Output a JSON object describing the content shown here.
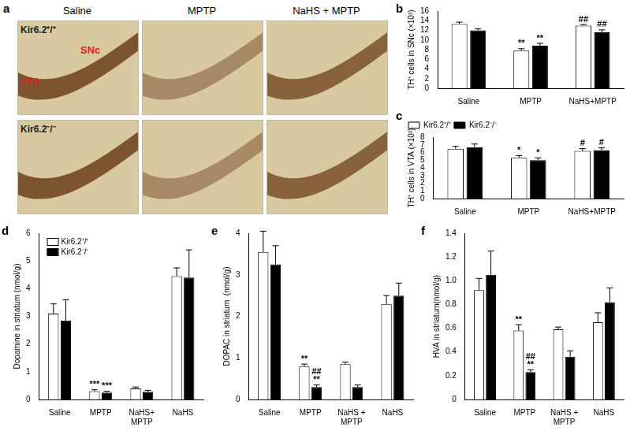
{
  "panel_a": {
    "label": "a",
    "columns": [
      "Saline",
      "MPTP",
      "NaHS + MPTP"
    ],
    "rows": [
      "Kir6.2⁺/⁺",
      "Kir6.2⁻/⁻"
    ],
    "regions": [
      "VTA",
      "SNc"
    ]
  },
  "chart_data": [
    {
      "panel": "b",
      "type": "bar",
      "y_label": "TH⁺ cells in SNc (×10³)",
      "categories": [
        "Saline",
        "MPTP",
        "NaHS+MPTP"
      ],
      "series": [
        {
          "color": "#ffffff",
          "values": [
            13.3,
            7.8,
            13.0
          ],
          "errors": [
            0.4,
            0.4,
            0.2
          ],
          "marks": [
            null,
            "**",
            "##"
          ]
        },
        {
          "color": "#000000",
          "values": [
            12.0,
            8.8,
            11.6
          ],
          "errors": [
            0.3,
            0.5,
            0.5
          ],
          "marks": [
            null,
            "**",
            "##"
          ]
        }
      ],
      "ylim": [
        0,
        16
      ],
      "yticks": [
        0,
        2,
        4,
        6,
        8,
        10,
        12,
        14,
        16
      ],
      "grid": false
    },
    {
      "panel": "c",
      "type": "bar",
      "y_label": "TH⁺ cells in VTA (×10³)",
      "categories": [
        "Saline",
        "MPTP",
        "NaHS+MPTP"
      ],
      "series": [
        {
          "name": "Kir6.2⁺/⁺",
          "color": "#ffffff",
          "values": [
            6.5,
            5.3,
            6.2
          ],
          "errors": [
            0.3,
            0.3,
            0.3
          ],
          "marks": [
            null,
            "*",
            "#"
          ]
        },
        {
          "name": "Kir6.2⁻/⁻",
          "color": "#000000",
          "values": [
            6.7,
            5.0,
            6.3
          ],
          "errors": [
            0.4,
            0.3,
            0.3
          ],
          "marks": [
            null,
            "*",
            "#"
          ]
        }
      ],
      "ylim": [
        0,
        8
      ],
      "yticks": [
        0,
        1,
        2,
        3,
        4,
        5,
        6,
        7,
        8
      ],
      "grid": false,
      "legend": "top"
    },
    {
      "panel": "d",
      "type": "bar",
      "y_label": "Dopamine in striatum (nmol/g)",
      "categories": [
        "Saline",
        "MPTP",
        [
          "NaHS+",
          "MPTP"
        ],
        "NaHS"
      ],
      "series": [
        {
          "name": "Kir6.2⁺/⁺",
          "color": "#ffffff",
          "values": [
            3.1,
            0.3,
            0.4,
            4.45
          ],
          "errors": [
            0.35,
            0.05,
            0.05,
            0.3
          ],
          "marks": [
            null,
            "***",
            null,
            null
          ]
        },
        {
          "name": "Kir6.2⁻/⁻",
          "color": "#000000",
          "values": [
            2.85,
            0.25,
            0.28,
            4.4
          ],
          "errors": [
            0.75,
            0.05,
            0.05,
            1.0
          ],
          "marks": [
            null,
            "***",
            null,
            null
          ]
        }
      ],
      "ylim": [
        0,
        6
      ],
      "yticks": [
        0,
        1,
        2,
        3,
        4,
        5,
        6
      ],
      "grid": false,
      "legend": "upper left"
    },
    {
      "panel": "e",
      "type": "bar",
      "y_label": "DOPAC in striatum  (nmol/g)",
      "categories": [
        "Saline",
        "MPTP",
        [
          "NaHS +",
          "MPTP"
        ],
        "NaHS"
      ],
      "series": [
        {
          "color": "#ffffff",
          "values": [
            3.55,
            0.8,
            0.85,
            2.3
          ],
          "errors": [
            0.5,
            0.05,
            0.05,
            0.2
          ],
          "marks": [
            null,
            "**",
            null,
            null
          ]
        },
        {
          "color": "#000000",
          "values": [
            3.25,
            0.3,
            0.3,
            2.5
          ],
          "errors": [
            0.45,
            0.05,
            0.05,
            0.3
          ],
          "marks": [
            null,
            [
              "##",
              "**"
            ],
            null,
            null
          ]
        }
      ],
      "ylim": [
        0,
        4
      ],
      "yticks": [
        0,
        1,
        2,
        3,
        4
      ],
      "grid": false
    },
    {
      "panel": "f",
      "type": "bar",
      "y_label": "HVA in striatum(nmol/g)",
      "categories": [
        "Saline",
        "MPTP",
        [
          "NaHS +",
          "MPTP"
        ],
        "NaHS"
      ],
      "series": [
        {
          "color": "#ffffff",
          "values": [
            0.92,
            0.58,
            0.59,
            0.65
          ],
          "errors": [
            0.1,
            0.05,
            0.02,
            0.08
          ],
          "marks": [
            null,
            "**",
            null,
            null
          ]
        },
        {
          "color": "#000000",
          "values": [
            1.05,
            0.23,
            0.36,
            0.82
          ],
          "errors": [
            0.2,
            0.02,
            0.05,
            0.12
          ],
          "marks": [
            null,
            [
              "##",
              "**"
            ],
            null,
            null
          ]
        }
      ],
      "ylim": [
        0,
        1.4
      ],
      "yticks": [
        0,
        0.2,
        0.4,
        0.6,
        0.8,
        {
          "value": 1,
          "label": "1.0"
        },
        1.2,
        1.4
      ],
      "grid": false
    }
  ]
}
